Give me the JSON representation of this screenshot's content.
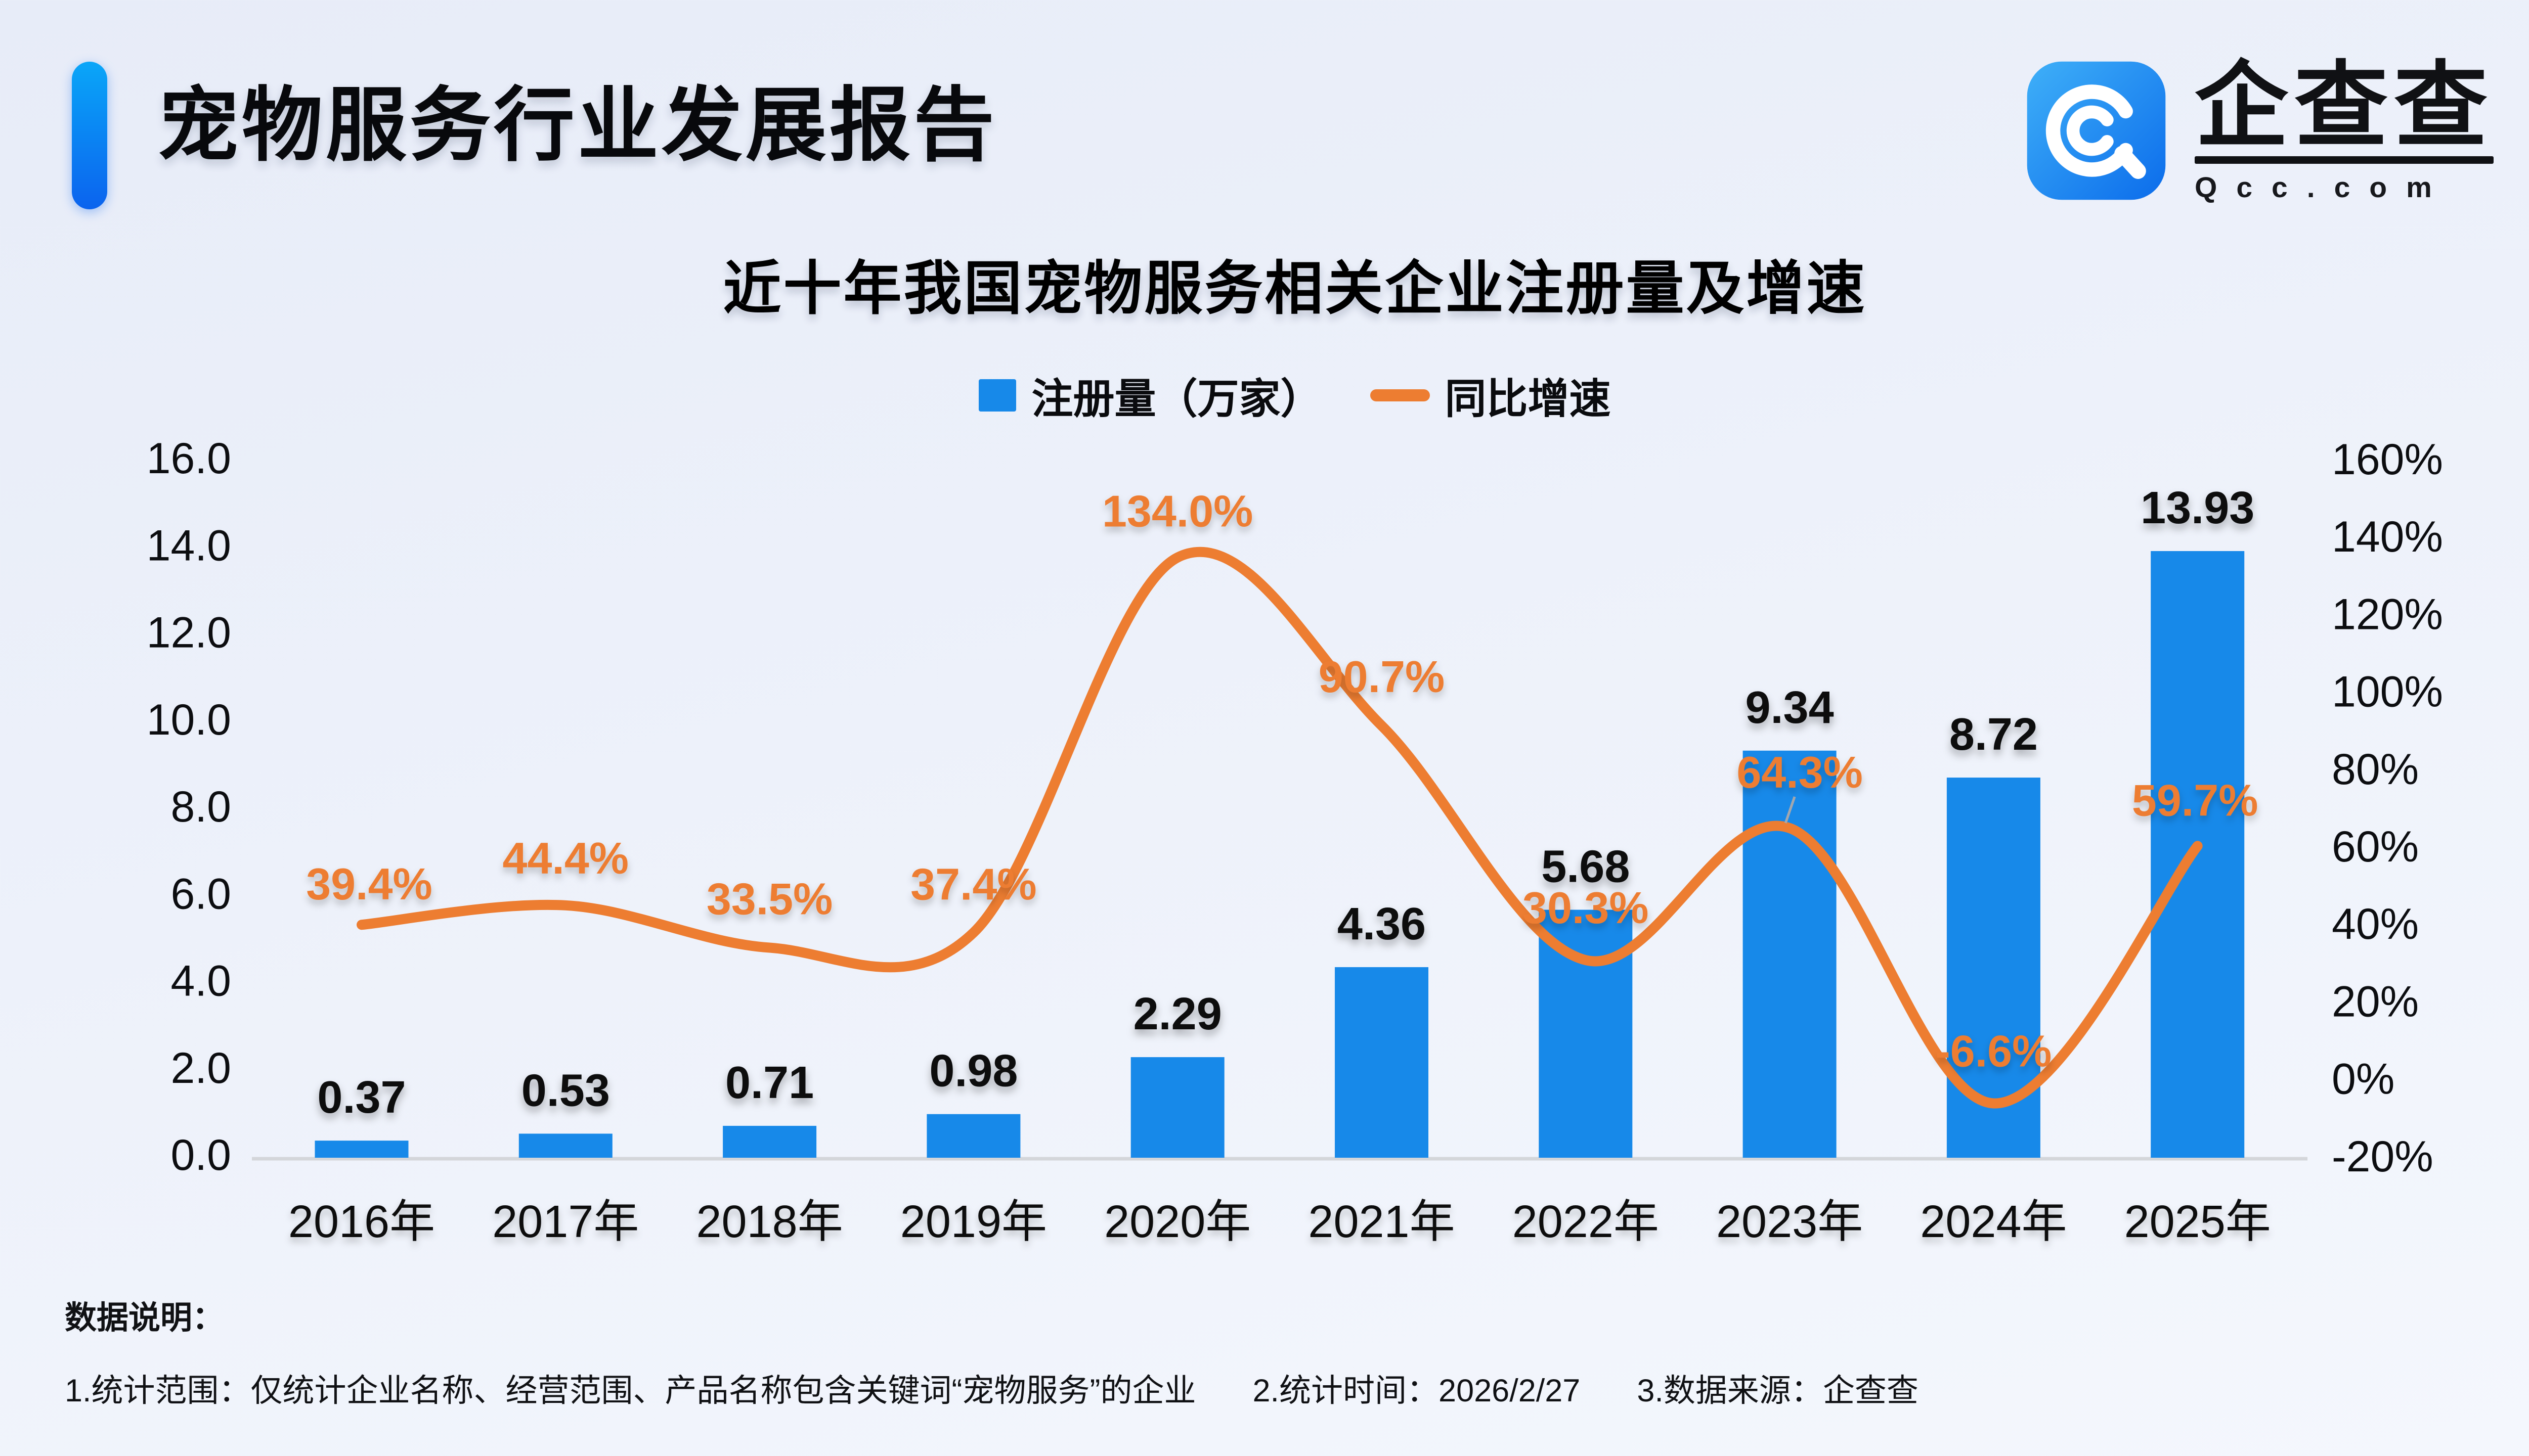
{
  "header": {
    "title": "宠物服务行业发展报告"
  },
  "logo": {
    "icon": "qcc-app-icon",
    "brand_cn": "企查查",
    "brand_domain": "Qcc.com",
    "brand_color": "#1283ee"
  },
  "chart": {
    "title": "近十年我国宠物服务相关企业注册量及增速",
    "legend": [
      {
        "label": "注册量（万家）",
        "swatch": "bar",
        "color": "#1789e9"
      },
      {
        "label": "同比增速",
        "swatch": "line",
        "color": "#ed7d31"
      }
    ]
  },
  "chart_data": {
    "type": "combo",
    "categories": [
      "2016年",
      "2017年",
      "2018年",
      "2019年",
      "2020年",
      "2021年",
      "2022年",
      "2023年",
      "2024年",
      "2025年"
    ],
    "series": [
      {
        "name": "注册量（万家）",
        "type": "bar",
        "color": "#1789e9",
        "values": [
          0.37,
          0.53,
          0.71,
          0.98,
          2.29,
          4.36,
          5.68,
          9.34,
          8.72,
          13.93
        ],
        "labels": [
          "0.37",
          "0.53",
          "0.71",
          "0.98",
          "2.29",
          "4.36",
          "5.68",
          "9.34",
          "8.72",
          "13.93"
        ]
      },
      {
        "name": "同比增速",
        "type": "line",
        "color": "#ed7d31",
        "unit": "%",
        "values": [
          39.4,
          44.4,
          33.5,
          37.4,
          134.0,
          90.7,
          30.3,
          64.3,
          -6.6,
          59.7
        ],
        "labels": [
          "39.4%",
          "44.4%",
          "33.5%",
          "37.4%",
          "134.0%",
          "90.7%",
          "30.3%",
          "64.3%",
          "-6.6%",
          "59.7%"
        ]
      }
    ],
    "left_axis": {
      "ticks": [
        "16.0",
        "14.0",
        "12.0",
        "10.0",
        "8.0",
        "6.0",
        "4.0",
        "2.0",
        "0.0"
      ],
      "min": 0,
      "max": 16
    },
    "right_axis": {
      "ticks": [
        "160%",
        "140%",
        "120%",
        "100%",
        "80%",
        "60%",
        "40%",
        "20%",
        "0%",
        "-20%"
      ],
      "min": -20,
      "max": 160
    },
    "grid": false,
    "legend_position": "top",
    "baseline_color": "#d4d6da"
  },
  "footer": {
    "heading": "数据说明：",
    "notes": [
      "1.统计范围：仅统计企业名称、经营范围、产品名称包含关键词“宠物服务”的企业",
      "2.统计时间：2026/2/27",
      "3.数据来源：企查查"
    ]
  }
}
